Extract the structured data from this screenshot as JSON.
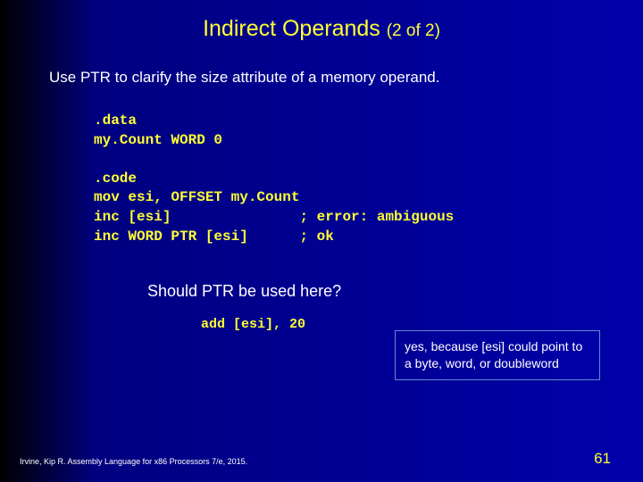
{
  "title_main": "Indirect Operands ",
  "title_sub": "(2 of 2)",
  "subtitle": "Use PTR to clarify the size attribute of a memory operand.",
  "code_block": ".data\nmy.Count WORD 0\n\n.code\nmov esi, OFFSET my.Count\ninc [esi]               ; error: ambiguous\ninc WORD PTR [esi]      ; ok",
  "question": "Should PTR be used here?",
  "question_code": "add [esi], 20",
  "answer": "yes, because [esi] could point to a byte, word, or doubleword",
  "footer": "Irvine, Kip R. Assembly Language for x86 Processors 7/e, 2015.",
  "page_num": "61"
}
